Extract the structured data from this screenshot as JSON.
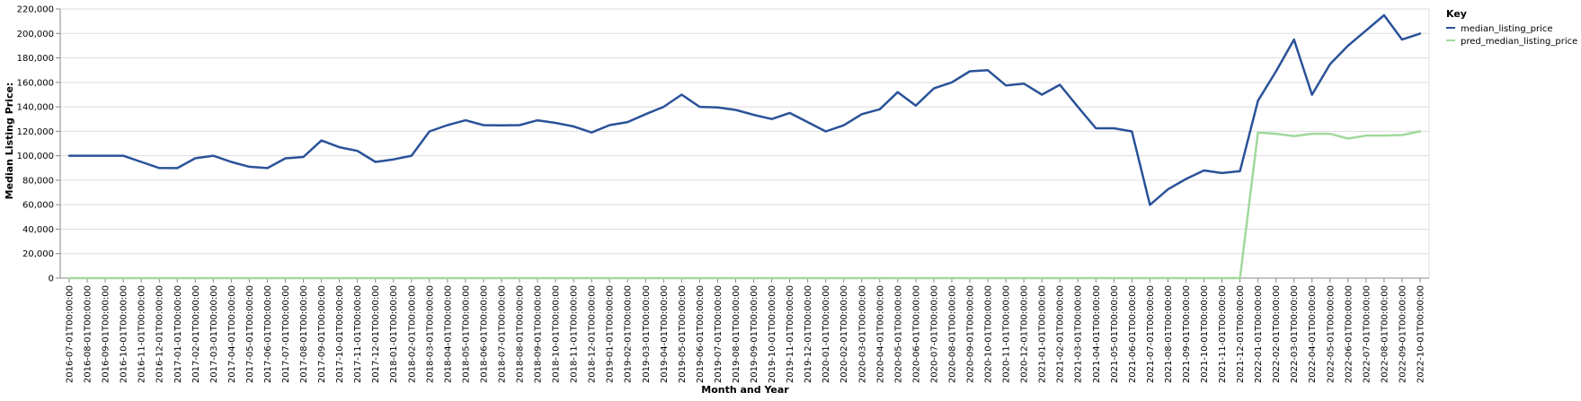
{
  "chart_data": {
    "type": "line",
    "title": "",
    "xlabel": "Month and Year",
    "ylabel": "Median Listing Price:",
    "ylim": [
      0,
      220000
    ],
    "yticks": [
      0,
      20000,
      40000,
      60000,
      80000,
      100000,
      120000,
      140000,
      160000,
      180000,
      200000,
      220000
    ],
    "ytick_labels": [
      "0",
      "20,000",
      "40,000",
      "60,000",
      "80,000",
      "100,000",
      "120,000",
      "140,000",
      "160,000",
      "180,000",
      "200,000",
      "220,000"
    ],
    "grid": true,
    "legend": {
      "title": "Key",
      "position": "right"
    },
    "categories": [
      "2016-07-01T00:00:00",
      "2016-08-01T00:00:00",
      "2016-09-01T00:00:00",
      "2016-10-01T00:00:00",
      "2016-11-01T00:00:00",
      "2016-12-01T00:00:00",
      "2017-01-01T00:00:00",
      "2017-02-01T00:00:00",
      "2017-03-01T00:00:00",
      "2017-04-01T00:00:00",
      "2017-05-01T00:00:00",
      "2017-06-01T00:00:00",
      "2017-07-01T00:00:00",
      "2017-08-01T00:00:00",
      "2017-09-01T00:00:00",
      "2017-10-01T00:00:00",
      "2017-11-01T00:00:00",
      "2017-12-01T00:00:00",
      "2018-01-01T00:00:00",
      "2018-02-01T00:00:00",
      "2018-03-01T00:00:00",
      "2018-04-01T00:00:00",
      "2018-05-01T00:00:00",
      "2018-06-01T00:00:00",
      "2018-07-01T00:00:00",
      "2018-08-01T00:00:00",
      "2018-09-01T00:00:00",
      "2018-10-01T00:00:00",
      "2018-11-01T00:00:00",
      "2018-12-01T00:00:00",
      "2019-01-01T00:00:00",
      "2019-02-01T00:00:00",
      "2019-03-01T00:00:00",
      "2019-04-01T00:00:00",
      "2019-05-01T00:00:00",
      "2019-06-01T00:00:00",
      "2019-07-01T00:00:00",
      "2019-08-01T00:00:00",
      "2019-09-01T00:00:00",
      "2019-10-01T00:00:00",
      "2019-11-01T00:00:00",
      "2019-12-01T00:00:00",
      "2020-01-01T00:00:00",
      "2020-02-01T00:00:00",
      "2020-03-01T00:00:00",
      "2020-04-01T00:00:00",
      "2020-05-01T00:00:00",
      "2020-06-01T00:00:00",
      "2020-07-01T00:00:00",
      "2020-08-01T00:00:00",
      "2020-09-01T00:00:00",
      "2020-10-01T00:00:00",
      "2020-11-01T00:00:00",
      "2020-12-01T00:00:00",
      "2021-01-01T00:00:00",
      "2021-02-01T00:00:00",
      "2021-03-01T00:00:00",
      "2021-04-01T00:00:00",
      "2021-05-01T00:00:00",
      "2021-06-01T00:00:00",
      "2021-07-01T00:00:00",
      "2021-08-01T00:00:00",
      "2021-09-01T00:00:00",
      "2021-10-01T00:00:00",
      "2021-11-01T00:00:00",
      "2021-12-01T00:00:00",
      "2022-01-01T00:00:00",
      "2022-02-01T00:00:00",
      "2022-03-01T00:00:00",
      "2022-04-01T00:00:00",
      "2022-05-01T00:00:00",
      "2022-06-01T00:00:00",
      "2022-07-01T00:00:00",
      "2022-08-01T00:00:00",
      "2022-09-01T00:00:00",
      "2022-10-01T00:00:00"
    ],
    "series": [
      {
        "name": "median_listing_price",
        "color": "#2a5298",
        "values": [
          100000,
          100000,
          100000,
          100000,
          95000,
          90000,
          89900,
          98000,
          100000,
          95000,
          91000,
          89900,
          97900,
          99000,
          112500,
          107000,
          104000,
          95000,
          97000,
          100000,
          119900,
          125000,
          129000,
          125000,
          124900,
          125000,
          129000,
          126900,
          124000,
          119000,
          125000,
          127500,
          134000,
          140000,
          150000,
          140000,
          139500,
          137500,
          133500,
          130000,
          135000,
          127500,
          119900,
          124900,
          134000,
          138000,
          152000,
          141000,
          155000,
          160000,
          169000,
          169900,
          157500,
          159000,
          150000,
          158000,
          140000,
          122500,
          122500,
          119900,
          59900,
          72500,
          81000,
          88000,
          85900,
          87500,
          145000,
          169000,
          195000,
          149900,
          174900,
          190000,
          202500,
          214900,
          195000,
          199900
        ]
      },
      {
        "name": "pred_median_listing_price",
        "color": "#a1d99b",
        "values": [
          0,
          0,
          0,
          0,
          0,
          0,
          0,
          0,
          0,
          0,
          0,
          0,
          0,
          0,
          0,
          0,
          0,
          0,
          0,
          0,
          0,
          0,
          0,
          0,
          0,
          0,
          0,
          0,
          0,
          0,
          0,
          0,
          0,
          0,
          0,
          0,
          0,
          0,
          0,
          0,
          0,
          0,
          0,
          0,
          0,
          0,
          0,
          0,
          0,
          0,
          0,
          0,
          0,
          0,
          0,
          0,
          0,
          0,
          0,
          0,
          0,
          0,
          0,
          0,
          0,
          0,
          119000,
          118000,
          116000,
          118000,
          118000,
          114000,
          116500,
          116500,
          117000,
          120000
        ]
      }
    ]
  }
}
